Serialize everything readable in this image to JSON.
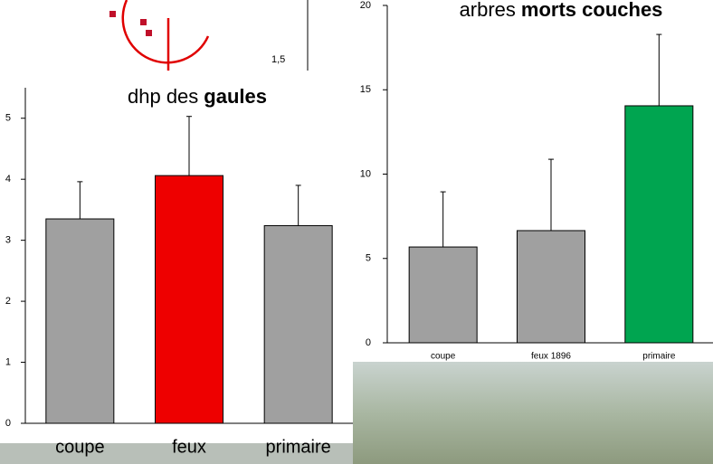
{
  "chart_data": [
    {
      "type": "bar",
      "title": "dhp des",
      "title_bold": "gaules",
      "categories": [
        "coupe",
        "feux",
        "primaire"
      ],
      "values": [
        3.35,
        4.06,
        3.24
      ],
      "errors": [
        0.61,
        0.97,
        0.66
      ],
      "colors": [
        "#a0a0a0",
        "#ee0000",
        "#a0a0a0"
      ],
      "ylim": [
        0,
        5.5
      ],
      "yticks": [
        0,
        1,
        2,
        3,
        4,
        5
      ]
    },
    {
      "type": "bar",
      "title": "arbres",
      "title_bold": "morts couches",
      "categories": [
        "coupe",
        "feux 1896",
        "primaire"
      ],
      "values": [
        5.68,
        6.65,
        14.05
      ],
      "errors": [
        3.27,
        4.23,
        4.23
      ],
      "colors": [
        "#a0a0a0",
        "#a0a0a0",
        "#00a550"
      ],
      "ylim": [
        0,
        20
      ],
      "yticks": [
        0,
        5,
        10,
        15,
        20
      ]
    }
  ],
  "fragment": {
    "tick_label": "1,5"
  }
}
